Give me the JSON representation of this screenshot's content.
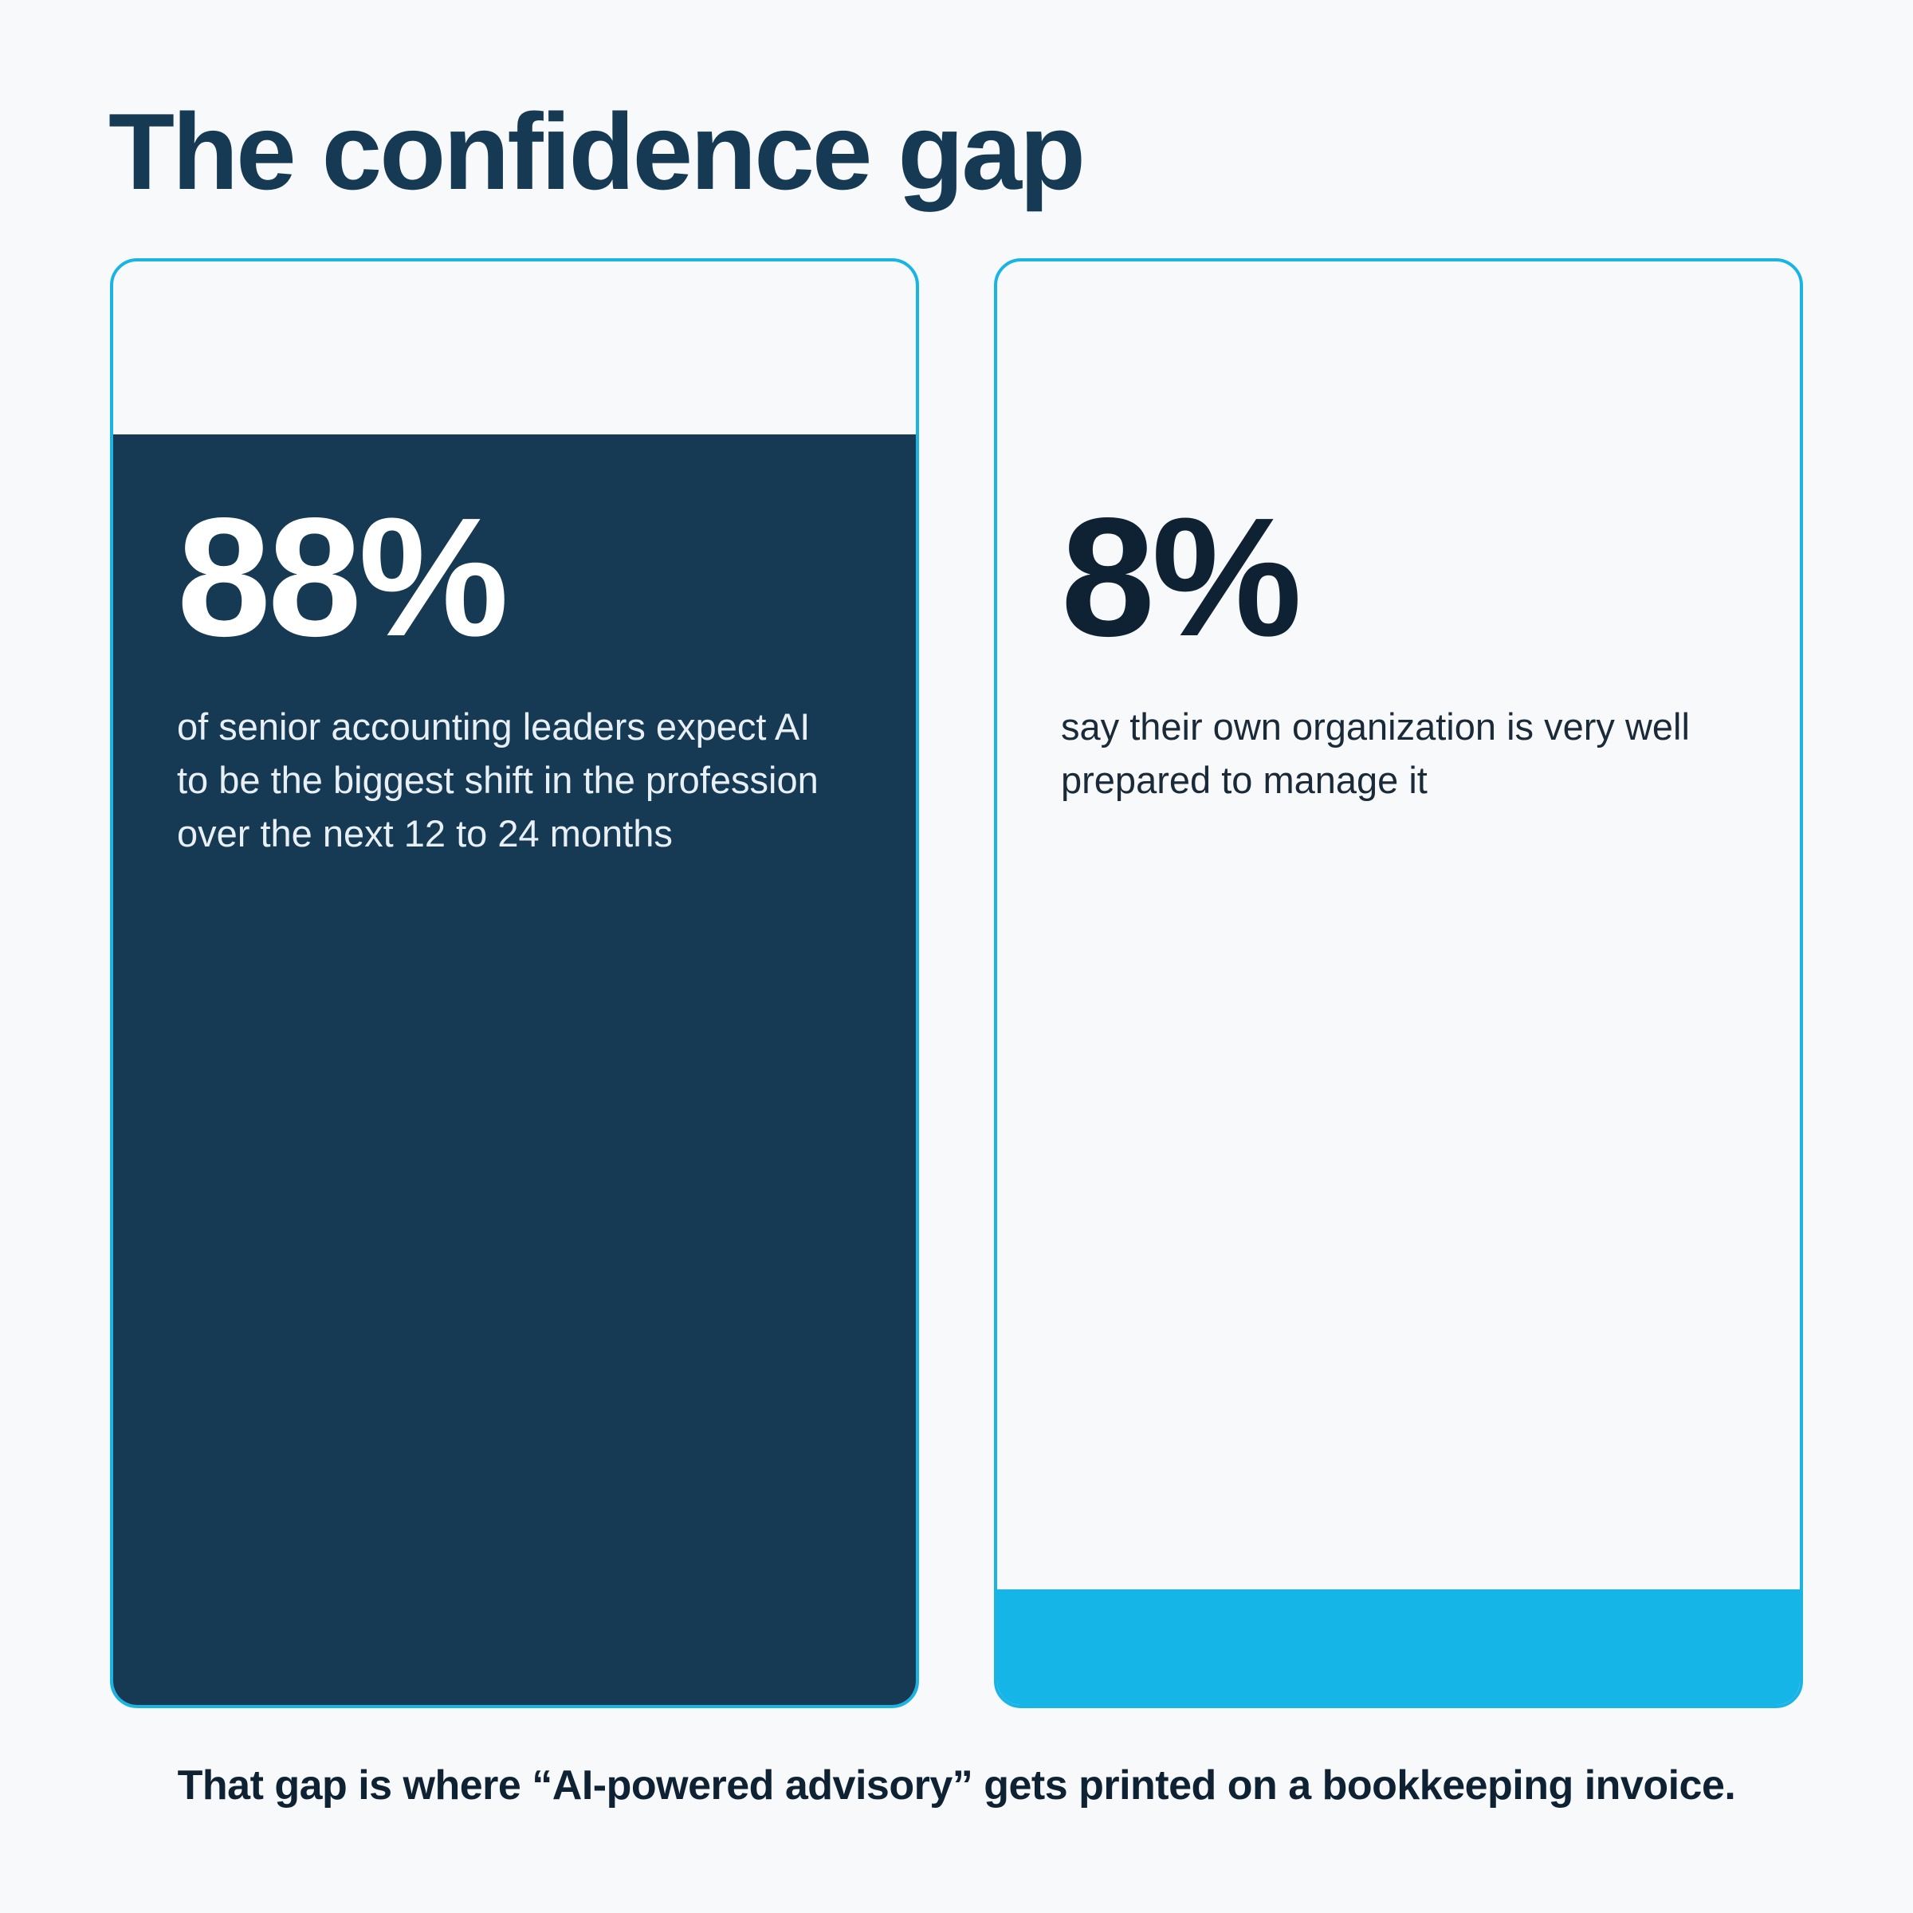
{
  "chart_data": {
    "type": "fill",
    "title": "The confidence gap",
    "values": [
      88,
      8
    ],
    "value_labels": [
      "88%",
      "8%"
    ],
    "descriptions": [
      "of senior accounting leaders expect AI to be the biggest shift in the profession over the next 12 to 24 months",
      "say their own organization is very well prepared to manage it"
    ],
    "colors": [
      "#163a54",
      "#16b5e8"
    ],
    "ylim": [
      0,
      100
    ],
    "footer": "That gap is where “AI-powered advisory” gets printed on a bookkeeping invoice."
  }
}
